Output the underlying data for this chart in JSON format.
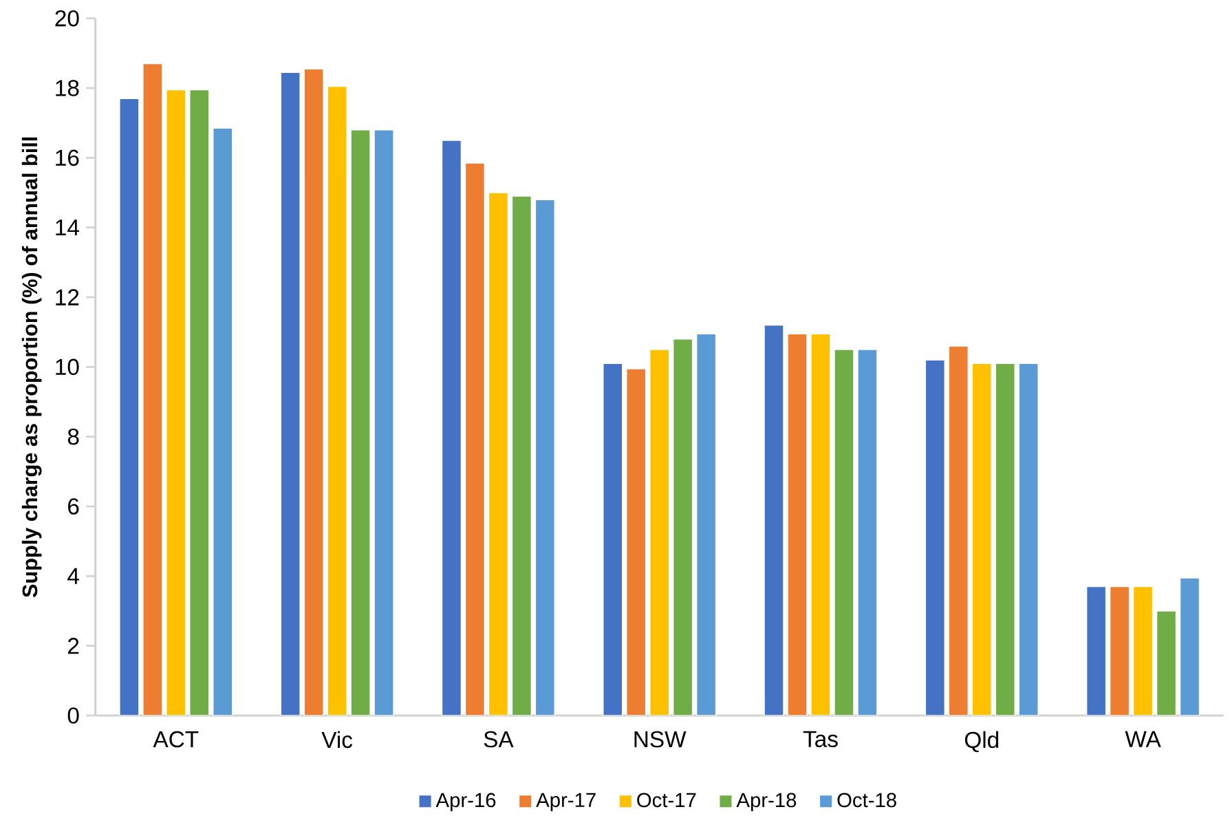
{
  "chart_data": {
    "type": "bar",
    "ylabel": "Supply charge as proportion (%) of annual bill",
    "categories": [
      "ACT",
      "Vic",
      "SA",
      "NSW",
      "Tas",
      "Qld",
      "WA"
    ],
    "series": [
      {
        "name": "Apr-16",
        "color": "#4472c4",
        "values": [
          17.7,
          18.45,
          16.5,
          10.1,
          11.2,
          10.2,
          3.7
        ]
      },
      {
        "name": "Apr-17",
        "color": "#ed7d31",
        "values": [
          18.7,
          18.55,
          15.85,
          9.95,
          10.95,
          10.6,
          3.7
        ]
      },
      {
        "name": "Oct-17",
        "color": "#ffc000",
        "values": [
          17.95,
          18.05,
          15.0,
          10.5,
          10.95,
          10.1,
          3.7
        ]
      },
      {
        "name": "Apr-18",
        "color": "#70ad47",
        "values": [
          17.95,
          16.8,
          14.9,
          10.8,
          10.5,
          10.1,
          3.0
        ]
      },
      {
        "name": "Oct-18",
        "color": "#5b9bd5",
        "values": [
          16.85,
          16.8,
          14.8,
          10.95,
          10.5,
          10.1,
          3.95
        ]
      }
    ],
    "ylim": [
      0,
      20
    ],
    "yticks": [
      0,
      2,
      4,
      6,
      8,
      10,
      12,
      14,
      16,
      18,
      20
    ],
    "grid": false,
    "legend": "bottom"
  }
}
